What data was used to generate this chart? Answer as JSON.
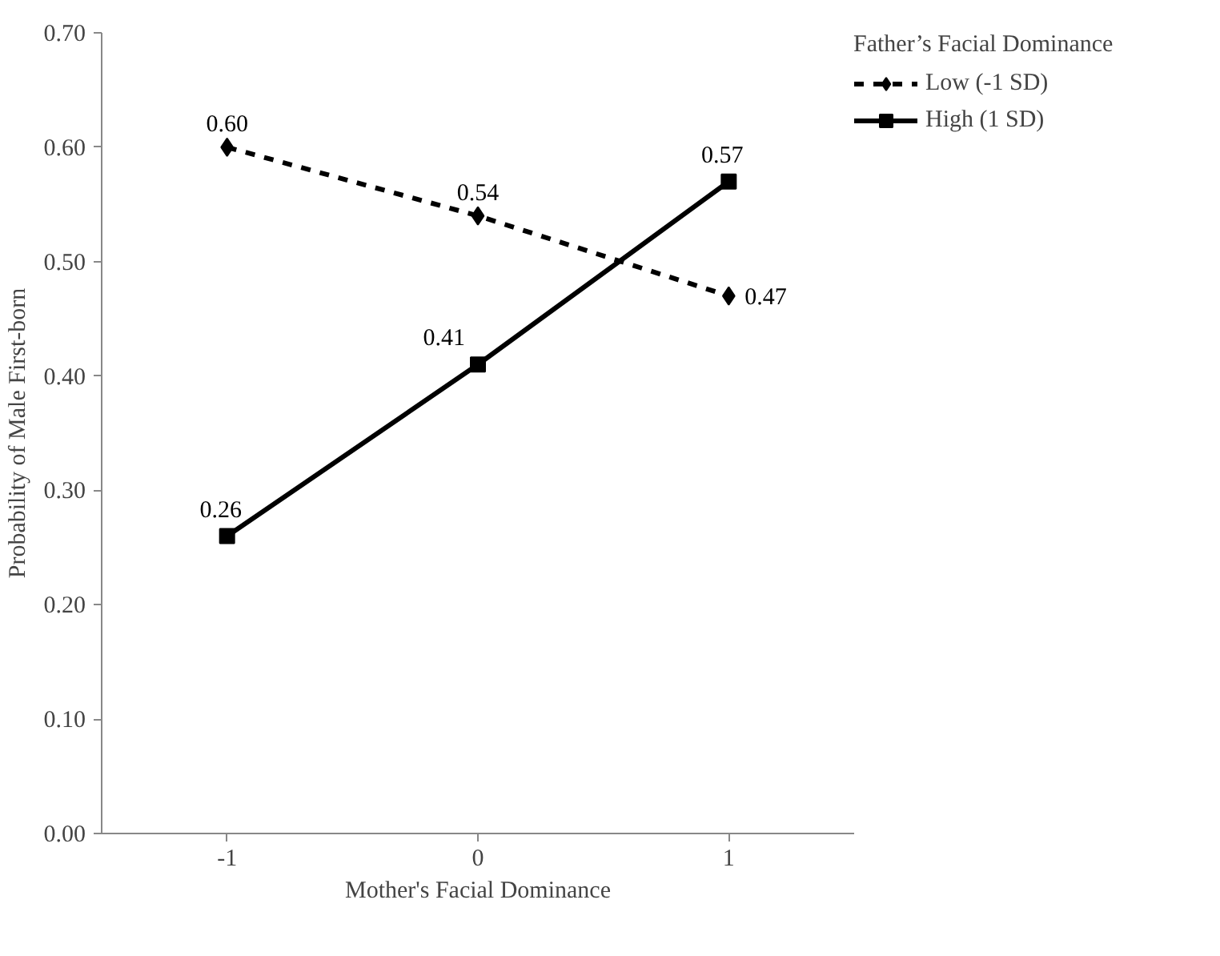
{
  "chart_data": {
    "type": "line",
    "xlabel": "Mother's Facial Dominance",
    "ylabel": "Probability of Male First-born",
    "legend_title": "Father’s Facial Dominance",
    "categories": [
      "-1",
      "0",
      "1"
    ],
    "series": [
      {
        "name": "Low (-1 SD)",
        "color": "#000000",
        "values": [
          0.6,
          0.54,
          0.47
        ],
        "value_labels": [
          "0.60",
          "0.54",
          "0.47"
        ],
        "line_style": "dashed",
        "marker": "diamond"
      },
      {
        "name": "High (1 SD)",
        "color": "#000000",
        "values": [
          0.26,
          0.41,
          0.57
        ],
        "value_labels": [
          "0.26",
          "0.41",
          "0.57"
        ],
        "line_style": "solid",
        "marker": "square"
      }
    ],
    "ylim": [
      0,
      0.7
    ],
    "yticks": [
      {
        "value": 0,
        "label": "0.00"
      },
      {
        "value": 0.1,
        "label": "0.10"
      },
      {
        "value": 0.2,
        "label": "0.20"
      },
      {
        "value": 0.3,
        "label": "0.30"
      },
      {
        "value": 0.4,
        "label": "0.40"
      },
      {
        "value": 0.5,
        "label": "0.50"
      },
      {
        "value": 0.6,
        "label": "0.60"
      },
      {
        "value": 0.7,
        "label": "0.70"
      }
    ],
    "grid": false,
    "legend": "right"
  }
}
